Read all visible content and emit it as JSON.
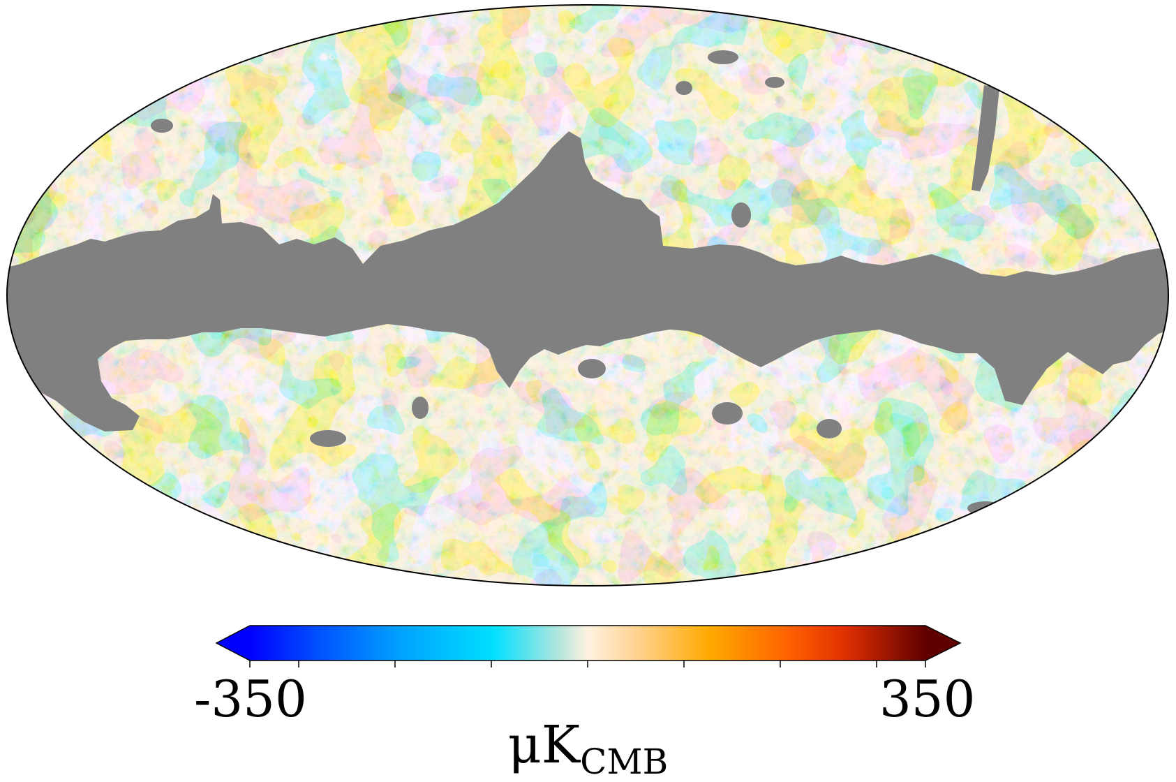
{
  "map": {
    "projection": "mollweide",
    "mask_color": "#808080",
    "outline_color": "#000000"
  },
  "colorbar": {
    "min_label": "-350",
    "max_label": "350",
    "min_value": -350,
    "max_value": 350,
    "unit": "μK",
    "unit_subscript": "CMB",
    "extend": "both",
    "colors": [
      "#0000ff",
      "#0066ff",
      "#00b4ff",
      "#00e0ff",
      "#a8e8e0",
      "#fff0dc",
      "#ffc870",
      "#ffa800",
      "#ff7800",
      "#ff4400",
      "#b01800",
      "#600000"
    ]
  }
}
